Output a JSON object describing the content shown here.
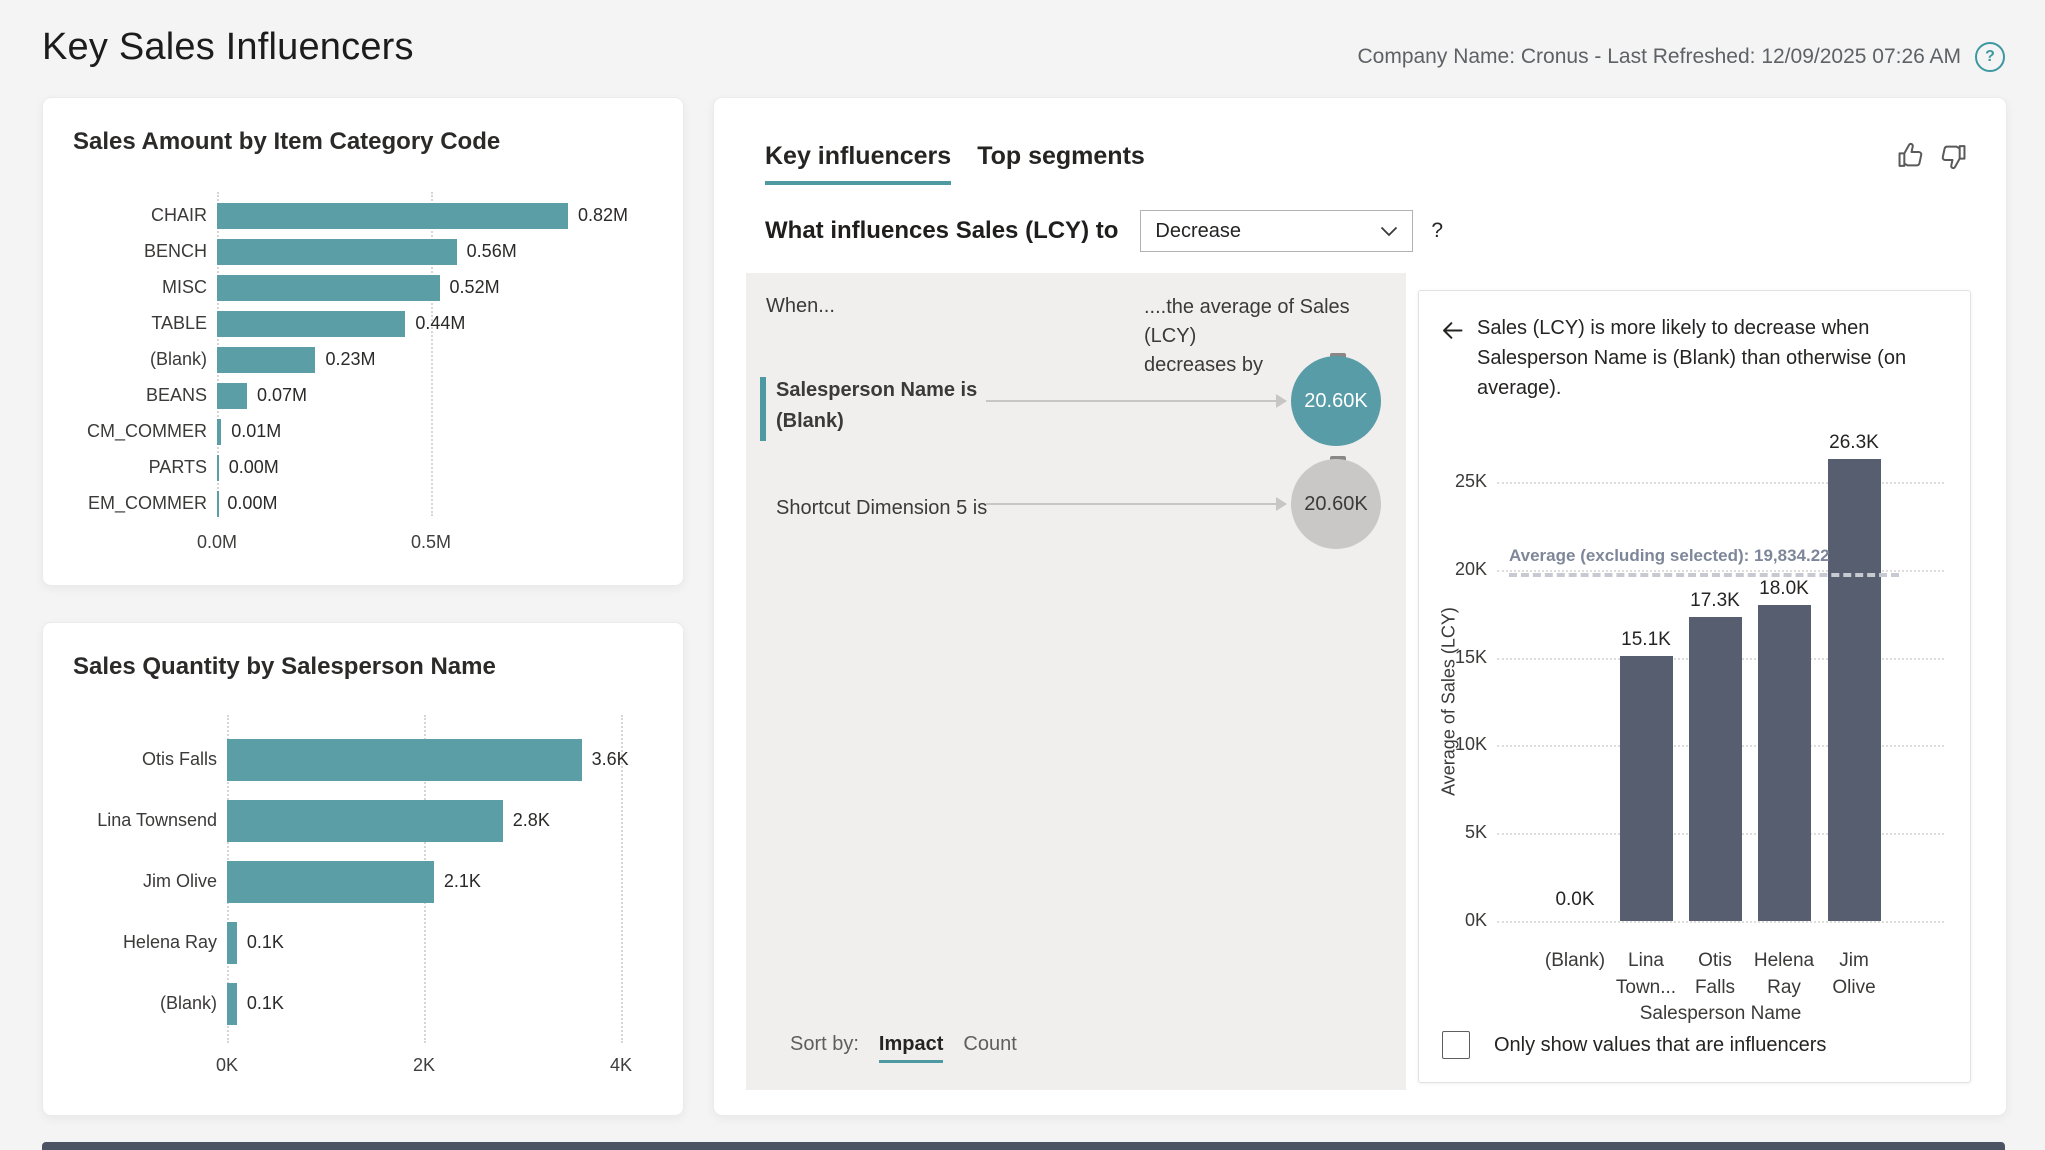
{
  "header": {
    "title": "Key Sales Influencers",
    "meta": "Company Name: Cronus - Last Refreshed: 12/09/2025 07:26 AM",
    "help_icon": "?"
  },
  "colors": {
    "accent_teal": "#4D9AA3",
    "teal_bar": "#5B9EA6",
    "teal_bubble": "#579CA6",
    "slate_bar": "#575E70",
    "panel_bg": "#F1EFED",
    "avg_label": "#7E8799",
    "gray_bubble": "#C9C8C7"
  },
  "chart_data": [
    {
      "type": "bar",
      "orientation": "horizontal",
      "title": "Sales Amount by Item Category Code",
      "categories": [
        "CHAIR",
        "BENCH",
        "MISC",
        "TABLE",
        "(Blank)",
        "BEANS",
        "CM_COMMER",
        "PARTS",
        "EM_COMMER"
      ],
      "values": [
        0.82,
        0.56,
        0.52,
        0.44,
        0.23,
        0.07,
        0.01,
        0.004,
        0.001
      ],
      "value_labels": [
        "0.82M",
        "0.56M",
        "0.52M",
        "0.44M",
        "0.23M",
        "0.07M",
        "0.01M",
        "0.00M",
        "0.00M"
      ],
      "xticks": [
        {
          "label": "0.0M",
          "value": 0
        },
        {
          "label": "0.5M",
          "value": 0.5
        }
      ],
      "xlim": [
        0,
        1.05
      ],
      "xlabel": "",
      "ylabel": "",
      "grid": "dotted-vertical",
      "legend": "none"
    },
    {
      "type": "bar",
      "orientation": "horizontal",
      "title": "Sales Quantity by Salesperson Name",
      "categories": [
        "Otis Falls",
        "Lina Townsend",
        "Jim Olive",
        "Helena Ray",
        "(Blank)"
      ],
      "values": [
        3.6,
        2.8,
        2.1,
        0.1,
        0.1
      ],
      "value_labels": [
        "3.6K",
        "2.8K",
        "2.1K",
        "0.1K",
        "0.1K"
      ],
      "xticks": [
        {
          "label": "0K",
          "value": 0
        },
        {
          "label": "2K",
          "value": 2
        },
        {
          "label": "4K",
          "value": 4
        }
      ],
      "xlim": [
        0,
        4.55
      ],
      "xlabel": "",
      "ylabel": "",
      "grid": "dotted-vertical",
      "legend": "none"
    },
    {
      "type": "bar",
      "orientation": "vertical",
      "title": "",
      "categories": [
        "(Blank)",
        "Lina Town...",
        "Otis Falls",
        "Helena Ray",
        "Jim Olive"
      ],
      "category_lines": [
        [
          "(Blank)"
        ],
        [
          "Lina",
          "Town..."
        ],
        [
          "Otis",
          "Falls"
        ],
        [
          "Helena",
          "Ray"
        ],
        [
          "Jim",
          "Olive"
        ]
      ],
      "values": [
        0.0,
        15.1,
        17.3,
        18.0,
        26.3
      ],
      "value_labels": [
        "0.0K",
        "15.1K",
        "17.3K",
        "18.0K",
        "26.3K"
      ],
      "yticks": [
        {
          "label": "0K",
          "value": 0
        },
        {
          "label": "5K",
          "value": 5
        },
        {
          "label": "10K",
          "value": 10
        },
        {
          "label": "15K",
          "value": 15
        },
        {
          "label": "20K",
          "value": 20
        },
        {
          "label": "25K",
          "value": 25
        }
      ],
      "ylim": [
        0,
        27.5
      ],
      "xlabel": "Salesperson Name",
      "ylabel": "Average of Sales (LCY)",
      "average_line": {
        "value": 19.83422,
        "label": "Average (excluding selected): 19,834.22"
      },
      "grid": "dotted-horizontal",
      "legend": "none"
    }
  ],
  "influencer_panel": {
    "tabs": [
      {
        "label": "Key influencers",
        "selected": true
      },
      {
        "label": "Top segments",
        "selected": false
      }
    ],
    "question": {
      "prefix": "What influences Sales (LCY) to",
      "dropdown_value": "Decrease",
      "help": "?"
    },
    "when_header": "When...",
    "effect_header": "....the average of Sales (LCY)\ndecreases by",
    "rows": [
      {
        "condition": "Salesperson Name is\n(Blank)",
        "bubble_value": "20.60K",
        "selected": true
      },
      {
        "condition": "Shortcut Dimension 5 is",
        "bubble_value": "20.60K",
        "selected": false
      }
    ],
    "sort": {
      "label": "Sort by:",
      "options": [
        {
          "label": "Impact",
          "selected": true
        },
        {
          "label": "Count",
          "selected": false
        }
      ]
    },
    "detail": {
      "headline": "Sales (LCY) is more likely to decrease when Salesperson Name is (Blank) than otherwise (on average).",
      "checkbox_label": "Only show values that are influencers",
      "checkbox_checked": false
    }
  }
}
